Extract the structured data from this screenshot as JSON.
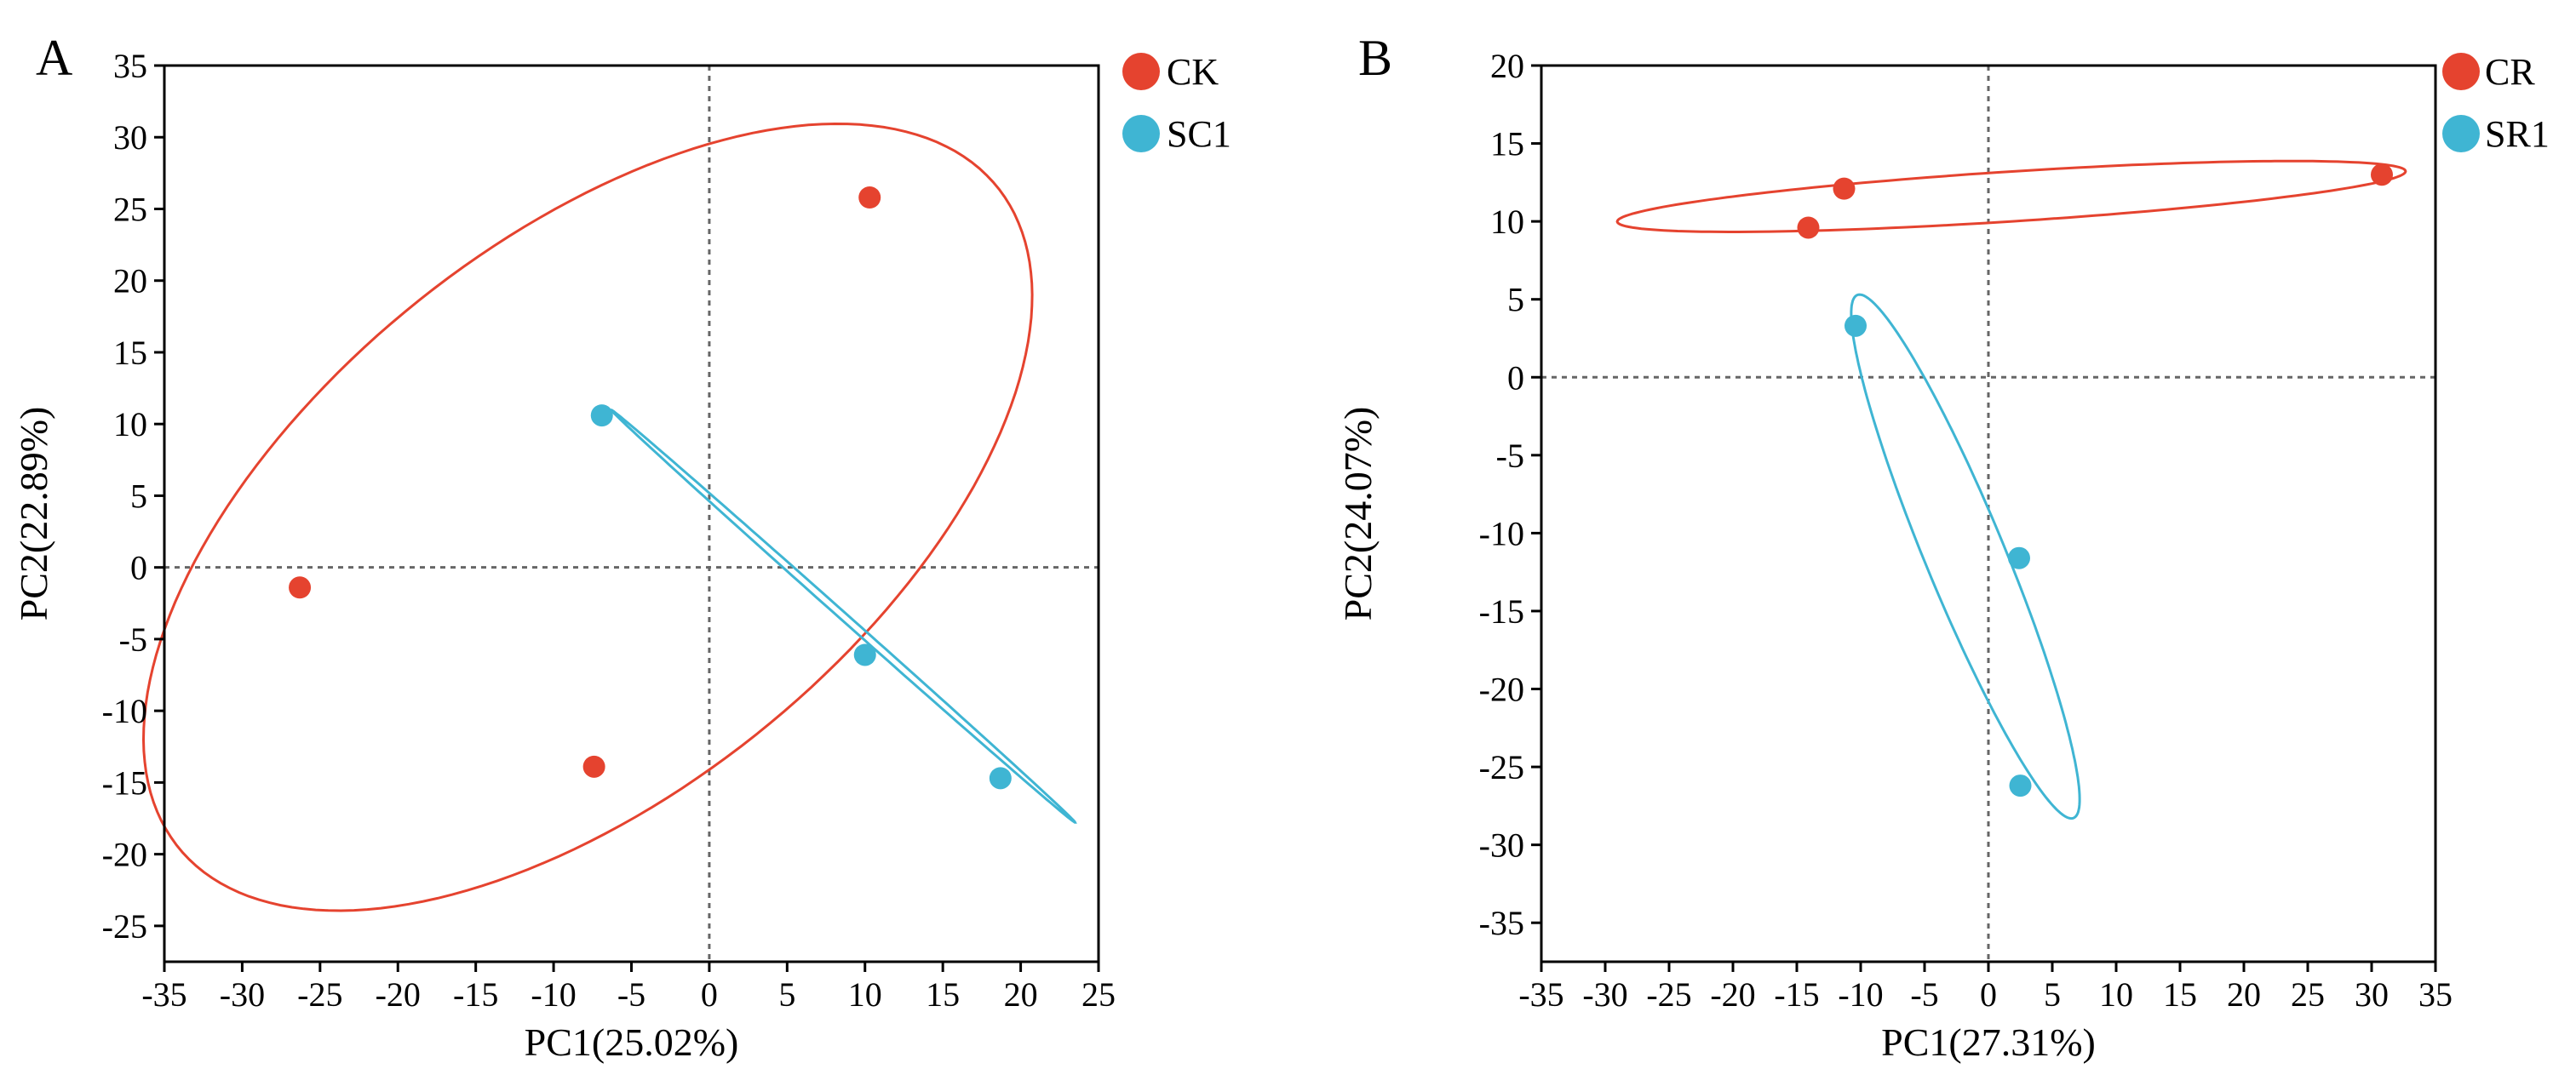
{
  "chart_data": [
    {
      "type": "scatter",
      "panel_label": "A",
      "xlabel": "PC1(25.02%)",
      "ylabel": "PC2(22.89%)",
      "xlim": [
        -35,
        25
      ],
      "ylim": [
        -27.5,
        35
      ],
      "xticks": [
        -35,
        -30,
        -25,
        -20,
        -15,
        -10,
        -5,
        0,
        5,
        10,
        15,
        20,
        25
      ],
      "yticks": [
        -25,
        -20,
        -15,
        -10,
        -5,
        0,
        5,
        10,
        15,
        20,
        25,
        30,
        35
      ],
      "reference_lines": {
        "x": 0,
        "y": 0,
        "style": "dotted"
      },
      "legend_position": "outside-top-right",
      "series": [
        {
          "name": "CK",
          "color": "#e5432f",
          "points": [
            [
              10.3,
              25.8
            ],
            [
              -26.3,
              -1.4
            ],
            [
              -7.4,
              -13.9
            ]
          ],
          "ellipse": {
            "center": [
              -7.8,
              3.5
            ],
            "semi_major": 35.0,
            "semi_minor": 18.5,
            "angle_deg": 43
          }
        },
        {
          "name": "SC1",
          "color": "#3fb5d3",
          "points": [
            [
              -6.9,
              10.6
            ],
            [
              10.0,
              -6.1
            ],
            [
              18.7,
              -14.7
            ]
          ],
          "ellipse": {
            "center": [
              8.6,
              -3.4
            ],
            "semi_major": 20.7,
            "semi_minor": 0.25,
            "angle_deg": -44
          }
        }
      ]
    },
    {
      "type": "scatter",
      "panel_label": "B",
      "xlabel": "PC1(27.31%)",
      "ylabel": "PC2(24.07%)",
      "xlim": [
        -35,
        35
      ],
      "ylim": [
        -37.5,
        20
      ],
      "xticks": [
        -35,
        -30,
        -25,
        -20,
        -15,
        -10,
        -5,
        0,
        5,
        10,
        15,
        20,
        25,
        30,
        35
      ],
      "yticks": [
        -35,
        -30,
        -25,
        -20,
        -15,
        -10,
        -5,
        0,
        5,
        10,
        15,
        20
      ],
      "reference_lines": {
        "x": 0,
        "y": 0,
        "style": "dotted"
      },
      "legend_position": "outside-top-right",
      "series": [
        {
          "name": "CR",
          "color": "#e5432f",
          "points": [
            [
              -11.3,
              12.1
            ],
            [
              -14.1,
              9.6
            ],
            [
              30.8,
              13.0
            ]
          ],
          "ellipse": {
            "center": [
              1.8,
              11.6
            ],
            "semi_major": 30.9,
            "semi_minor": 1.6,
            "angle_deg": 3
          }
        },
        {
          "name": "SR1",
          "color": "#3fb5d3",
          "points": [
            [
              -10.4,
              3.3
            ],
            [
              2.4,
              -11.6
            ],
            [
              2.5,
              -26.2
            ]
          ],
          "ellipse": {
            "center": [
              -1.8,
              -11.5
            ],
            "semi_major": 18.8,
            "semi_minor": 3.0,
            "angle_deg": -63
          }
        }
      ]
    }
  ]
}
